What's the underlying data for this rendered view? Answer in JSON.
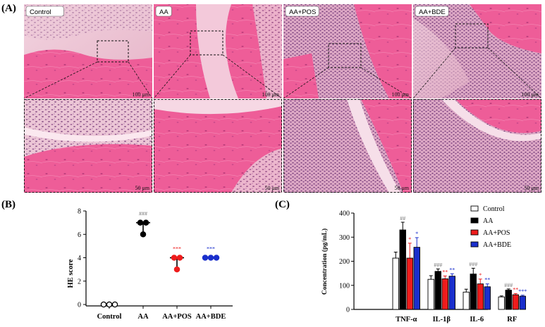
{
  "figure": {
    "panel_a_label": "(A)",
    "panel_b_label": "(B)",
    "panel_c_label": "(C)"
  },
  "histology": {
    "groups": [
      "Control",
      "AA",
      "AA+POS",
      "AA+BDE"
    ],
    "top_scale": "100 μm",
    "bottom_scale": "50 μm",
    "colors": {
      "tissue_pink": "#e8709c",
      "bone_pink": "#ee5a95",
      "stroma": "#ecc3d3",
      "nuclei": "#7a3f7a"
    }
  },
  "chart_data": [
    {
      "type": "scatter",
      "panel": "B",
      "ylabel": "HE score",
      "categories": [
        "Control",
        "AA",
        "AA+POS",
        "AA+BDE"
      ],
      "ylim": [
        0,
        8
      ],
      "yticks": [
        0,
        2,
        4,
        6,
        8
      ],
      "points": [
        {
          "category": "Control",
          "values": [
            0,
            0,
            0
          ],
          "median": 0,
          "range": [
            0,
            0
          ]
        },
        {
          "category": "AA",
          "values": [
            7,
            7,
            6
          ],
          "median": 7,
          "range": [
            6,
            7
          ]
        },
        {
          "category": "AA+POS",
          "values": [
            4,
            4,
            3
          ],
          "median": 4,
          "range": [
            3,
            4
          ]
        },
        {
          "category": "AA+BDE",
          "values": [
            4,
            4,
            4
          ],
          "median": 4,
          "range": [
            4,
            4
          ]
        }
      ],
      "annotations": [
        {
          "category": "AA",
          "text": "###"
        },
        {
          "category": "AA+POS",
          "text": "***"
        },
        {
          "category": "AA+BDE",
          "text": "***"
        }
      ],
      "colors": {
        "Control": "#000000",
        "AA": "#000000",
        "AA+POS": "#ee1c1c",
        "AA+BDE": "#1a2fcc"
      }
    },
    {
      "type": "bar",
      "panel": "C",
      "ylabel": "Concentration (pg/mL)",
      "categories": [
        "TNF-α",
        "IL-1β",
        "IL-6",
        "RF"
      ],
      "ylim": [
        0,
        400
      ],
      "yticks": [
        0,
        100,
        200,
        300,
        400
      ],
      "series": [
        {
          "name": "Control",
          "color": "#ffffff",
          "values": [
            213,
            125,
            72,
            52
          ],
          "errors": [
            25,
            15,
            12,
            4
          ]
        },
        {
          "name": "AA",
          "color": "#000000",
          "values": [
            330,
            158,
            147,
            80
          ],
          "errors": [
            32,
            10,
            24,
            5
          ]
        },
        {
          "name": "AA+POS",
          "color": "#ee1c1c",
          "values": [
            213,
            127,
            106,
            61
          ],
          "errors": [
            62,
            12,
            20,
            5
          ]
        },
        {
          "name": "AA+BDE",
          "color": "#1a2fcc",
          "values": [
            258,
            138,
            94,
            55
          ],
          "errors": [
            40,
            10,
            12,
            4
          ]
        }
      ],
      "annotations": [
        {
          "category": "TNF-α",
          "series": "AA",
          "text": "##"
        },
        {
          "category": "TNF-α",
          "series": "AA+POS",
          "text": "*"
        },
        {
          "category": "TNF-α",
          "series": "AA+BDE",
          "text": "*"
        },
        {
          "category": "IL-1β",
          "series": "AA",
          "text": "###"
        },
        {
          "category": "IL-1β",
          "series": "AA+POS",
          "text": "**"
        },
        {
          "category": "IL-1β",
          "series": "AA+BDE",
          "text": "**"
        },
        {
          "category": "IL-6",
          "series": "AA",
          "text": "###"
        },
        {
          "category": "IL-6",
          "series": "AA+POS",
          "text": "*"
        },
        {
          "category": "IL-6",
          "series": "AA+BDE",
          "text": "**"
        },
        {
          "category": "RF",
          "series": "AA",
          "text": "###"
        },
        {
          "category": "RF",
          "series": "AA+POS",
          "text": "**"
        },
        {
          "category": "RF",
          "series": "AA+BDE",
          "text": "***"
        }
      ],
      "legend_position": "top-right"
    }
  ]
}
